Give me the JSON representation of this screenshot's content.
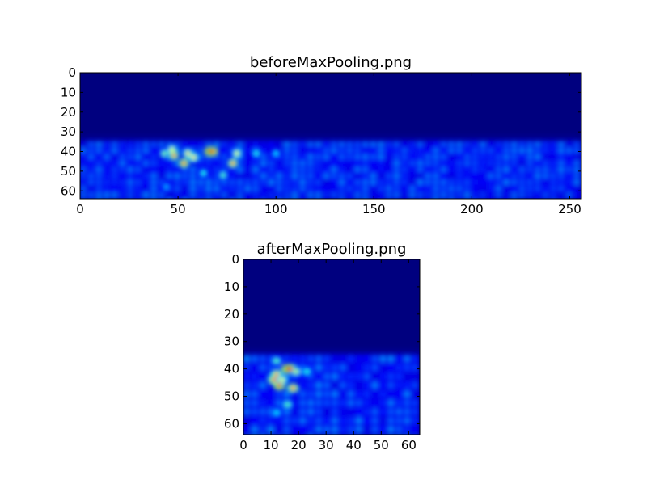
{
  "chart_data": [
    {
      "type": "heatmap",
      "title": "beforeMaxPooling.png",
      "xlim": [
        0,
        256
      ],
      "ylim": [
        64,
        0
      ],
      "xticks": [
        "0",
        "50",
        "100",
        "150",
        "200",
        "250"
      ],
      "yticks": [
        "0",
        "10",
        "20",
        "30",
        "40",
        "50",
        "60"
      ],
      "colormap": "jet",
      "background_color": "#00007f",
      "noise_band_rows": [
        35,
        64
      ],
      "hotspots": [
        {
          "x": 43,
          "y": 41,
          "v": 0.5
        },
        {
          "x": 47,
          "y": 39,
          "v": 0.6
        },
        {
          "x": 48,
          "y": 42,
          "v": 0.8
        },
        {
          "x": 53,
          "y": 46,
          "v": 0.85
        },
        {
          "x": 55,
          "y": 41,
          "v": 0.7
        },
        {
          "x": 58,
          "y": 43,
          "v": 0.7
        },
        {
          "x": 66,
          "y": 40,
          "v": 0.95
        },
        {
          "x": 68,
          "y": 40,
          "v": 0.9
        },
        {
          "x": 78,
          "y": 46,
          "v": 0.8
        },
        {
          "x": 80,
          "y": 41,
          "v": 0.6
        },
        {
          "x": 73,
          "y": 52,
          "v": 0.45
        },
        {
          "x": 63,
          "y": 51,
          "v": 0.4
        },
        {
          "x": 90,
          "y": 41,
          "v": 0.4
        },
        {
          "x": 100,
          "y": 41,
          "v": 0.35
        },
        {
          "x": 44,
          "y": 58,
          "v": 0.3
        }
      ]
    },
    {
      "type": "heatmap",
      "title": "afterMaxPooling.png",
      "xlim": [
        0,
        64
      ],
      "ylim": [
        64,
        0
      ],
      "xticks": [
        "0",
        "10",
        "20",
        "30",
        "40",
        "50",
        "60"
      ],
      "yticks": [
        "0",
        "10",
        "20",
        "30",
        "40",
        "50",
        "60"
      ],
      "colormap": "jet",
      "background_color": "#00007f",
      "noise_band_rows": [
        35,
        64
      ],
      "hotspots": [
        {
          "x": 12,
          "y": 37,
          "v": 0.45
        },
        {
          "x": 12,
          "y": 42,
          "v": 0.75
        },
        {
          "x": 11,
          "y": 44,
          "v": 0.8
        },
        {
          "x": 13,
          "y": 46,
          "v": 0.9
        },
        {
          "x": 14,
          "y": 44,
          "v": 0.6
        },
        {
          "x": 16,
          "y": 40,
          "v": 0.95
        },
        {
          "x": 17,
          "y": 40,
          "v": 0.9
        },
        {
          "x": 18,
          "y": 47,
          "v": 0.8
        },
        {
          "x": 19,
          "y": 41,
          "v": 0.55
        },
        {
          "x": 23,
          "y": 41,
          "v": 0.4
        },
        {
          "x": 16,
          "y": 53,
          "v": 0.45
        },
        {
          "x": 12,
          "y": 56,
          "v": 0.35
        }
      ]
    }
  ]
}
